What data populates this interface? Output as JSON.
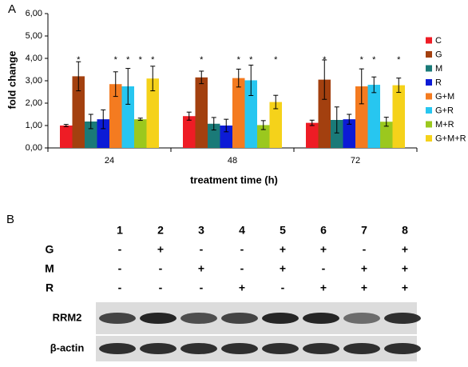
{
  "panel_labels": [
    "A",
    "B"
  ],
  "chart_data": {
    "type": "bar",
    "ylabel": "fold change",
    "xlabel": "treatment time (h)",
    "categories": [
      "24",
      "48",
      "72"
    ],
    "ylim": [
      0,
      6
    ],
    "yticks": [
      {
        "value": 0,
        "label": "0,00"
      },
      {
        "value": 1,
        "label": "1,00"
      },
      {
        "value": 2,
        "label": "2,00"
      },
      {
        "value": 3,
        "label": "3,00"
      },
      {
        "value": 4,
        "label": "4,00"
      },
      {
        "value": 5,
        "label": "5,00"
      },
      {
        "value": 6,
        "label": "6,00"
      }
    ],
    "legend": "right",
    "series": [
      {
        "name": "C",
        "color": "#ee1c25",
        "values": [
          1.0,
          1.42,
          1.12
        ],
        "errors": [
          0.05,
          0.18,
          0.12
        ],
        "significance": [
          null,
          null,
          null
        ]
      },
      {
        "name": "G",
        "color": "#a3400f",
        "values": [
          3.2,
          3.15,
          3.05
        ],
        "errors": [
          0.65,
          0.28,
          0.88
        ],
        "significance": [
          "*",
          "*",
          "*"
        ]
      },
      {
        "name": "M",
        "color": "#1a7a78",
        "values": [
          1.18,
          1.08,
          1.25
        ],
        "errors": [
          0.32,
          0.28,
          0.58
        ],
        "significance": [
          null,
          null,
          null
        ]
      },
      {
        "name": "R",
        "color": "#0c1bd6",
        "values": [
          1.28,
          1.0,
          1.28
        ],
        "errors": [
          0.42,
          0.28,
          0.22
        ],
        "significance": [
          null,
          null,
          null
        ]
      },
      {
        "name": "G+M",
        "color": "#f47b20",
        "values": [
          2.85,
          3.12,
          2.75
        ],
        "errors": [
          0.55,
          0.4,
          0.78
        ],
        "significance": [
          "*",
          "*",
          "*"
        ]
      },
      {
        "name": "G+R",
        "color": "#27c6f0",
        "values": [
          2.75,
          3.02,
          2.82
        ],
        "errors": [
          0.8,
          0.68,
          0.35
        ],
        "significance": [
          "*",
          "*",
          "*"
        ]
      },
      {
        "name": "M+R",
        "color": "#9bc81e",
        "values": [
          1.28,
          1.02,
          1.17
        ],
        "errors": [
          0.05,
          0.2,
          0.2
        ],
        "significance": [
          "*",
          null,
          null
        ]
      },
      {
        "name": "G+M+R",
        "color": "#f5d21a",
        "values": [
          3.1,
          2.05,
          2.8
        ],
        "errors": [
          0.55,
          0.3,
          0.32
        ],
        "significance": [
          "*",
          "*",
          "*"
        ]
      }
    ]
  },
  "blot": {
    "lanes": [
      "1",
      "2",
      "3",
      "4",
      "5",
      "6",
      "7",
      "8"
    ],
    "conditions": [
      {
        "name": "G",
        "signs": [
          "-",
          "+",
          "-",
          "-",
          "+",
          "+",
          "-",
          "+"
        ]
      },
      {
        "name": "M",
        "signs": [
          "-",
          "-",
          "+",
          "-",
          "+",
          "-",
          "+",
          "+"
        ]
      },
      {
        "name": "R",
        "signs": [
          "-",
          "-",
          "-",
          "+",
          "-",
          "+",
          "+",
          "+"
        ]
      }
    ],
    "bands": [
      "RRM2",
      "β-actin"
    ]
  }
}
